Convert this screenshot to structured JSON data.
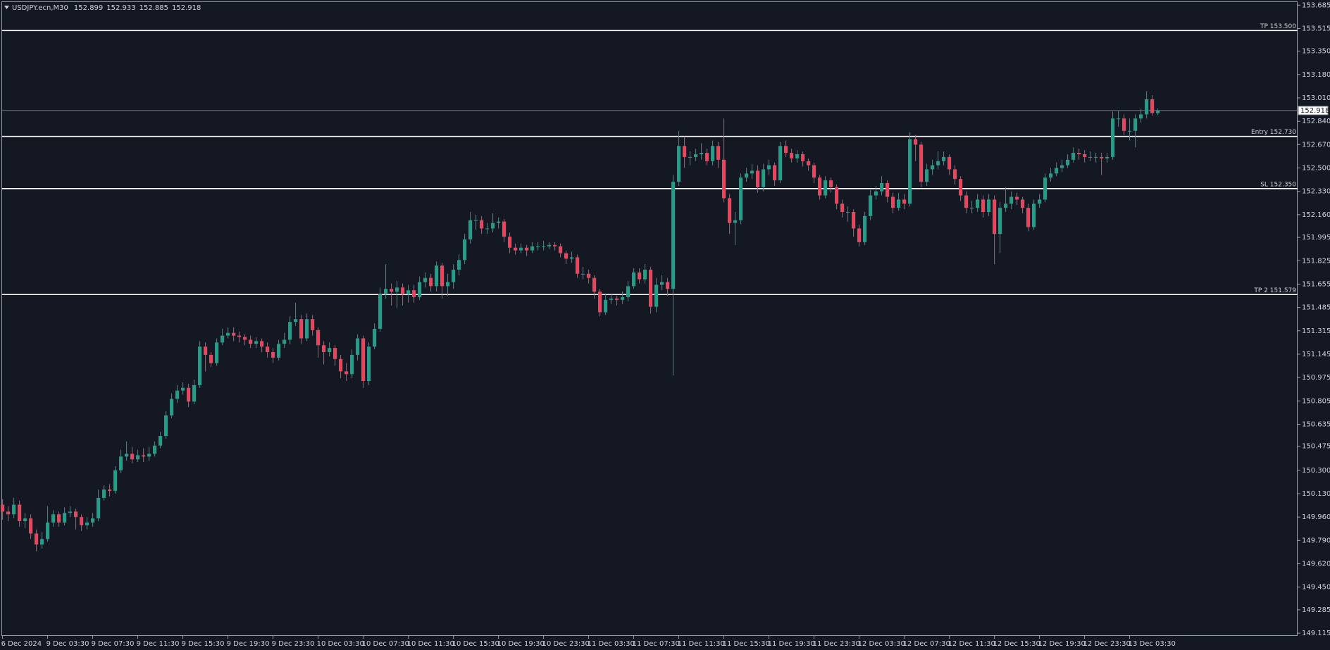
{
  "chart_data": {
    "type": "candlestick",
    "symbol": "USDJPY.ecn,M30",
    "up_color": "#1f9e88",
    "down_color": "#f0435a",
    "ylim": [
      149.095,
      153.71
    ],
    "yticks": [
      {
        "value": 153.685,
        "label": "153.685"
      },
      {
        "value": 153.515,
        "label": "153.515"
      },
      {
        "value": 153.35,
        "label": "153.350"
      },
      {
        "value": 153.18,
        "label": "153.180"
      },
      {
        "value": 153.01,
        "label": "153.010"
      },
      {
        "value": 152.84,
        "label": "152.840"
      },
      {
        "value": 152.67,
        "label": "152.670"
      },
      {
        "value": 152.5,
        "label": "152.500"
      },
      {
        "value": 152.33,
        "label": "152.330"
      },
      {
        "value": 152.16,
        "label": "152.160"
      },
      {
        "value": 151.995,
        "label": "151.995"
      },
      {
        "value": 151.825,
        "label": "151.825"
      },
      {
        "value": 151.655,
        "label": "151.655"
      },
      {
        "value": 151.485,
        "label": "151.485"
      },
      {
        "value": 151.315,
        "label": "151.315"
      },
      {
        "value": 151.145,
        "label": "151.145"
      },
      {
        "value": 150.975,
        "label": "150.975"
      },
      {
        "value": 150.805,
        "label": "150.805"
      },
      {
        "value": 150.635,
        "label": "150.635"
      },
      {
        "value": 150.475,
        "label": "150.475"
      },
      {
        "value": 150.3,
        "label": "150.300"
      },
      {
        "value": 150.13,
        "label": "150.130"
      },
      {
        "value": 149.96,
        "label": "149.960"
      },
      {
        "value": 149.79,
        "label": "149.790"
      },
      {
        "value": 149.62,
        "label": "149.620"
      },
      {
        "value": 149.45,
        "label": "149.450"
      },
      {
        "value": 149.285,
        "label": "149.285"
      },
      {
        "value": 149.115,
        "label": "149.115"
      }
    ],
    "levels": [
      {
        "label": "TP 153.500",
        "value": 153.5
      },
      {
        "label": "Entry 152.730",
        "value": 152.73
      },
      {
        "label": "SL 152.350",
        "value": 152.35
      },
      {
        "label": "TP 2 151.579",
        "value": 151.579
      }
    ],
    "categories": [
      "6 Dec 2024",
      null,
      null,
      null,
      null,
      null,
      null,
      null,
      "9 Dec 03:30",
      null,
      null,
      null,
      null,
      null,
      null,
      null,
      "9 Dec 07:30",
      null,
      null,
      null,
      null,
      null,
      null,
      null,
      "9 Dec 11:30",
      null,
      null,
      null,
      null,
      null,
      null,
      null,
      "9 Dec 15:30",
      null,
      null,
      null,
      null,
      null,
      null,
      null,
      "9 Dec 19:30",
      null,
      null,
      null,
      null,
      null,
      null,
      null,
      "9 Dec 23:30",
      null,
      null,
      null,
      null,
      null,
      null,
      null,
      "10 Dec 03:30",
      null,
      null,
      null,
      null,
      null,
      null,
      null,
      "10 Dec 07:30",
      null,
      null,
      null,
      null,
      null,
      null,
      null,
      "10 Dec 11:30",
      null,
      null,
      null,
      null,
      null,
      null,
      null,
      "10 Dec 15:30",
      null,
      null,
      null,
      null,
      null,
      null,
      null,
      "10 Dec 19:30",
      null,
      null,
      null,
      null,
      null,
      null,
      null,
      "10 Dec 23:30",
      null,
      null,
      null,
      null,
      null,
      null,
      null,
      "11 Dec 03:30",
      null,
      null,
      null,
      null,
      null,
      null,
      null,
      "11 Dec 07:30",
      null,
      null,
      null,
      null,
      null,
      null,
      null,
      "11 Dec 11:30",
      null,
      null,
      null,
      null,
      null,
      null,
      null,
      "11 Dec 15:30",
      null,
      null,
      null,
      null,
      null,
      null,
      null,
      "11 Dec 19:30",
      null,
      null,
      null,
      null,
      null,
      null,
      null,
      "11 Dec 23:30",
      null,
      null,
      null,
      null,
      null,
      null,
      null,
      "12 Dec 03:30",
      null,
      null,
      null,
      null,
      null,
      null,
      null,
      "12 Dec 07:30",
      null,
      null,
      null,
      null,
      null,
      null,
      null,
      "12 Dec 11:30",
      null,
      null,
      null,
      null,
      null,
      null,
      null,
      "12 Dec 15:30",
      null,
      null,
      null,
      null,
      null,
      null,
      null,
      "12 Dec 19:30",
      null,
      null,
      null,
      null,
      null,
      null,
      null,
      "12 Dec 23:30",
      null,
      null,
      null,
      null,
      null,
      null,
      null,
      "13 Dec 03:30",
      null,
      null,
      null,
      null,
      null
    ],
    "open": [
      150.05,
      150.0,
      149.98,
      150.05,
      149.93,
      149.95,
      149.84,
      149.76,
      149.8,
      149.92,
      149.98,
      149.92,
      149.99,
      150.0,
      149.96,
      149.9,
      149.92,
      149.95,
      150.1,
      150.16,
      150.15,
      150.3,
      150.4,
      150.42,
      150.38,
      150.41,
      150.4,
      150.42,
      150.48,
      150.55,
      150.7,
      150.82,
      150.88,
      150.9,
      150.8,
      150.92,
      151.2,
      151.14,
      151.08,
      151.23,
      151.28,
      151.3,
      151.28,
      151.27,
      151.25,
      151.22,
      151.24,
      151.2,
      151.16,
      151.12,
      151.22,
      151.25,
      151.38,
      151.4,
      151.26,
      151.4,
      151.32,
      151.21,
      151.16,
      151.19,
      151.11,
      151.02,
      151.0,
      151.14,
      151.26,
      150.95,
      151.2,
      151.33,
      151.58,
      151.62,
      151.6,
      151.63,
      151.58,
      151.61,
      151.56,
      151.67,
      151.7,
      151.64,
      151.79,
      151.64,
      151.67,
      151.76,
      151.83,
      151.98,
      152.12,
      152.12,
      152.06,
      152.06,
      152.1,
      152.11,
      152.0,
      151.92,
      151.9,
      151.92,
      151.9,
      151.93,
      151.93,
      151.93,
      151.94,
      151.93,
      151.88,
      151.84,
      151.85,
      151.73,
      151.73,
      151.7,
      151.6,
      151.45,
      151.54,
      151.55,
      151.54,
      151.56,
      151.64,
      151.74,
      151.69,
      151.76,
      151.49,
      151.65,
      151.67,
      151.62,
      152.4,
      152.66,
      152.58,
      152.58,
      152.6,
      152.61,
      152.55,
      152.66,
      152.56,
      152.28,
      152.1,
      152.12,
      152.43,
      152.46,
      152.48,
      152.36,
      152.49,
      152.52,
      152.41,
      152.66,
      152.61,
      152.57,
      152.6,
      152.55,
      152.52,
      152.43,
      152.3,
      152.41,
      152.36,
      152.24,
      152.18,
      152.18,
      152.06,
      151.96,
      152.15,
      152.3,
      152.33,
      152.39,
      152.29,
      152.21,
      152.27,
      152.24,
      152.71,
      152.67,
      152.4,
      152.49,
      152.52,
      152.55,
      152.58,
      152.49,
      152.42,
      152.3,
      152.21,
      152.21,
      152.27,
      152.18,
      152.27,
      152.02,
      152.21,
      152.24,
      152.29,
      152.27,
      152.21,
      152.07,
      152.24,
      152.27,
      152.43,
      152.46,
      152.5,
      152.52,
      152.56,
      152.61,
      152.6,
      152.58,
      152.58,
      152.58,
      152.57,
      152.58,
      152.86,
      152.86,
      152.77,
      152.77,
      152.86,
      152.89,
      153.0,
      152.899
    ],
    "high": [
      150.09,
      150.04,
      150.1,
      150.08,
      149.99,
      149.98,
      149.87,
      149.85,
      150.04,
      150.01,
      150.0,
      150.03,
      150.04,
      150.02,
      149.98,
      149.96,
      149.99,
      150.16,
      150.19,
      150.2,
      150.33,
      150.45,
      150.51,
      150.47,
      150.45,
      150.46,
      150.47,
      150.51,
      150.58,
      150.73,
      150.86,
      150.92,
      150.94,
      150.93,
      150.96,
      151.24,
      151.23,
      151.16,
      151.26,
      151.33,
      151.34,
      151.34,
      151.31,
      151.29,
      151.28,
      151.27,
      151.26,
      151.23,
      151.19,
      151.25,
      151.3,
      151.42,
      151.52,
      151.43,
      151.44,
      151.43,
      151.34,
      151.24,
      151.23,
      151.21,
      151.14,
      151.08,
      151.18,
      151.29,
      151.28,
      151.23,
      151.37,
      151.63,
      151.8,
      151.66,
      151.68,
      151.66,
      151.65,
      151.65,
      151.71,
      151.74,
      151.73,
      151.82,
      151.81,
      151.73,
      151.8,
      151.87,
      152.02,
      152.18,
      152.16,
      152.15,
      152.1,
      152.17,
      152.14,
      152.13,
      152.03,
      151.95,
      151.95,
      151.94,
      151.96,
      151.96,
      151.97,
      151.96,
      151.96,
      151.95,
      151.9,
      151.89,
      151.87,
      151.78,
      151.76,
      151.72,
      151.62,
      151.58,
      151.58,
      151.57,
      151.6,
      151.68,
      151.77,
      151.77,
      151.8,
      151.78,
      151.7,
      151.72,
      151.7,
      152.45,
      152.77,
      152.73,
      152.62,
      152.64,
      152.68,
      152.64,
      152.7,
      152.69,
      152.86,
      152.31,
      152.18,
      152.46,
      152.5,
      152.53,
      152.52,
      152.53,
      152.56,
      152.54,
      152.69,
      152.7,
      152.64,
      152.63,
      152.62,
      152.57,
      152.54,
      152.45,
      152.44,
      152.43,
      152.38,
      152.27,
      152.22,
      152.2,
      152.09,
      152.18,
      152.34,
      152.37,
      152.44,
      152.41,
      152.32,
      152.32,
      152.31,
      152.76,
      152.74,
      152.69,
      152.53,
      152.56,
      152.62,
      152.62,
      152.6,
      152.52,
      152.44,
      152.33,
      152.26,
      152.31,
      152.3,
      152.31,
      152.3,
      152.25,
      152.36,
      152.33,
      152.32,
      152.29,
      152.24,
      152.27,
      152.31,
      152.46,
      152.5,
      152.54,
      152.56,
      152.6,
      152.65,
      152.64,
      152.63,
      152.62,
      152.61,
      152.61,
      152.61,
      152.91,
      152.92,
      152.89,
      152.86,
      152.89,
      152.93,
      153.06,
      153.03,
      152.933
    ],
    "low": [
      149.94,
      149.93,
      149.95,
      149.89,
      149.88,
      149.8,
      149.71,
      149.73,
      149.78,
      149.89,
      149.89,
      149.9,
      149.96,
      149.87,
      149.86,
      149.87,
      149.89,
      149.93,
      150.08,
      150.11,
      150.13,
      150.28,
      150.37,
      150.35,
      150.36,
      150.36,
      150.37,
      150.4,
      150.46,
      150.53,
      150.68,
      150.79,
      150.85,
      150.76,
      150.78,
      150.9,
      151.02,
      151.05,
      151.06,
      151.21,
      151.26,
      151.24,
      151.23,
      151.21,
      151.19,
      151.19,
      151.16,
      151.12,
      151.08,
      151.1,
      151.19,
      151.22,
      151.35,
      151.22,
      151.24,
      151.28,
      151.12,
      151.07,
      151.13,
      151.06,
      150.97,
      150.95,
      150.97,
      151.1,
      150.9,
      150.92,
      151.18,
      151.31,
      151.55,
      151.5,
      151.48,
      151.5,
      151.52,
      151.52,
      151.54,
      151.63,
      151.6,
      151.6,
      151.55,
      151.57,
      151.62,
      151.72,
      151.8,
      151.95,
      152.05,
      152.02,
      152.02,
      152.03,
      152.06,
      151.96,
      151.88,
      151.87,
      151.88,
      151.86,
      151.88,
      151.9,
      151.9,
      151.91,
      151.9,
      151.85,
      151.8,
      151.81,
      151.7,
      151.69,
      151.66,
      151.55,
      151.42,
      151.43,
      151.51,
      151.5,
      151.51,
      151.53,
      151.62,
      151.66,
      151.66,
      151.44,
      151.45,
      151.61,
      151.57,
      150.99,
      152.37,
      152.5,
      152.52,
      152.55,
      152.56,
      152.52,
      152.52,
      152.5,
      152.25,
      152.02,
      151.94,
      152.09,
      152.4,
      152.42,
      152.32,
      152.33,
      152.45,
      152.37,
      152.39,
      152.58,
      152.54,
      152.54,
      152.51,
      152.48,
      152.39,
      152.27,
      152.28,
      152.32,
      152.2,
      152.14,
      152.11,
      152.0,
      151.93,
      151.94,
      152.12,
      152.27,
      152.3,
      152.25,
      152.17,
      152.19,
      152.2,
      152.22,
      152.55,
      152.36,
      152.37,
      152.45,
      152.49,
      152.52,
      152.45,
      152.38,
      152.26,
      152.17,
      152.17,
      152.18,
      152.14,
      152.15,
      151.8,
      151.88,
      152.18,
      152.2,
      152.23,
      152.17,
      152.04,
      152.05,
      152.21,
      152.25,
      152.4,
      152.44,
      152.47,
      152.5,
      152.54,
      152.56,
      152.54,
      152.55,
      152.54,
      152.45,
      152.54,
      152.56,
      152.8,
      152.74,
      152.7,
      152.65,
      152.83,
      152.86,
      152.88,
      152.885
    ],
    "close": [
      150.0,
      149.98,
      150.05,
      149.93,
      149.95,
      149.84,
      149.76,
      149.8,
      149.92,
      149.98,
      149.92,
      149.99,
      150.0,
      149.96,
      149.9,
      149.92,
      149.95,
      150.1,
      150.16,
      150.15,
      150.3,
      150.4,
      150.42,
      150.38,
      150.41,
      150.4,
      150.42,
      150.48,
      150.55,
      150.7,
      150.82,
      150.88,
      150.9,
      150.8,
      150.92,
      151.2,
      151.14,
      151.08,
      151.23,
      151.28,
      151.3,
      151.28,
      151.27,
      151.25,
      151.22,
      151.24,
      151.2,
      151.16,
      151.12,
      151.22,
      151.25,
      151.38,
      151.4,
      151.26,
      151.4,
      151.32,
      151.21,
      151.16,
      151.19,
      151.11,
      151.02,
      151.0,
      151.14,
      151.26,
      150.95,
      151.2,
      151.33,
      151.58,
      151.62,
      151.6,
      151.63,
      151.58,
      151.61,
      151.56,
      151.67,
      151.7,
      151.64,
      151.79,
      151.64,
      151.67,
      151.76,
      151.83,
      151.98,
      152.12,
      152.12,
      152.06,
      152.06,
      152.1,
      152.11,
      152.0,
      151.92,
      151.9,
      151.92,
      151.9,
      151.93,
      151.93,
      151.93,
      151.94,
      151.93,
      151.88,
      151.84,
      151.85,
      151.73,
      151.73,
      151.7,
      151.6,
      151.45,
      151.54,
      151.55,
      151.54,
      151.56,
      151.64,
      151.74,
      151.69,
      151.76,
      151.49,
      151.65,
      151.67,
      151.62,
      152.4,
      152.66,
      152.58,
      152.58,
      152.6,
      152.61,
      152.55,
      152.66,
      152.56,
      152.28,
      152.1,
      152.12,
      152.43,
      152.46,
      152.48,
      152.36,
      152.49,
      152.52,
      152.41,
      152.66,
      152.61,
      152.57,
      152.6,
      152.55,
      152.52,
      152.43,
      152.3,
      152.41,
      152.36,
      152.24,
      152.18,
      152.18,
      152.06,
      151.96,
      152.15,
      152.3,
      152.33,
      152.39,
      152.29,
      152.21,
      152.27,
      152.24,
      152.71,
      152.67,
      152.4,
      152.49,
      152.52,
      152.55,
      152.58,
      152.49,
      152.42,
      152.3,
      152.21,
      152.21,
      152.27,
      152.18,
      152.27,
      152.02,
      152.21,
      152.24,
      152.29,
      152.27,
      152.21,
      152.07,
      152.24,
      152.27,
      152.43,
      152.46,
      152.5,
      152.52,
      152.56,
      152.61,
      152.6,
      152.58,
      152.58,
      152.58,
      152.57,
      152.58,
      152.86,
      152.86,
      152.77,
      152.77,
      152.86,
      152.89,
      153.0,
      152.9,
      152.918
    ]
  }
}
